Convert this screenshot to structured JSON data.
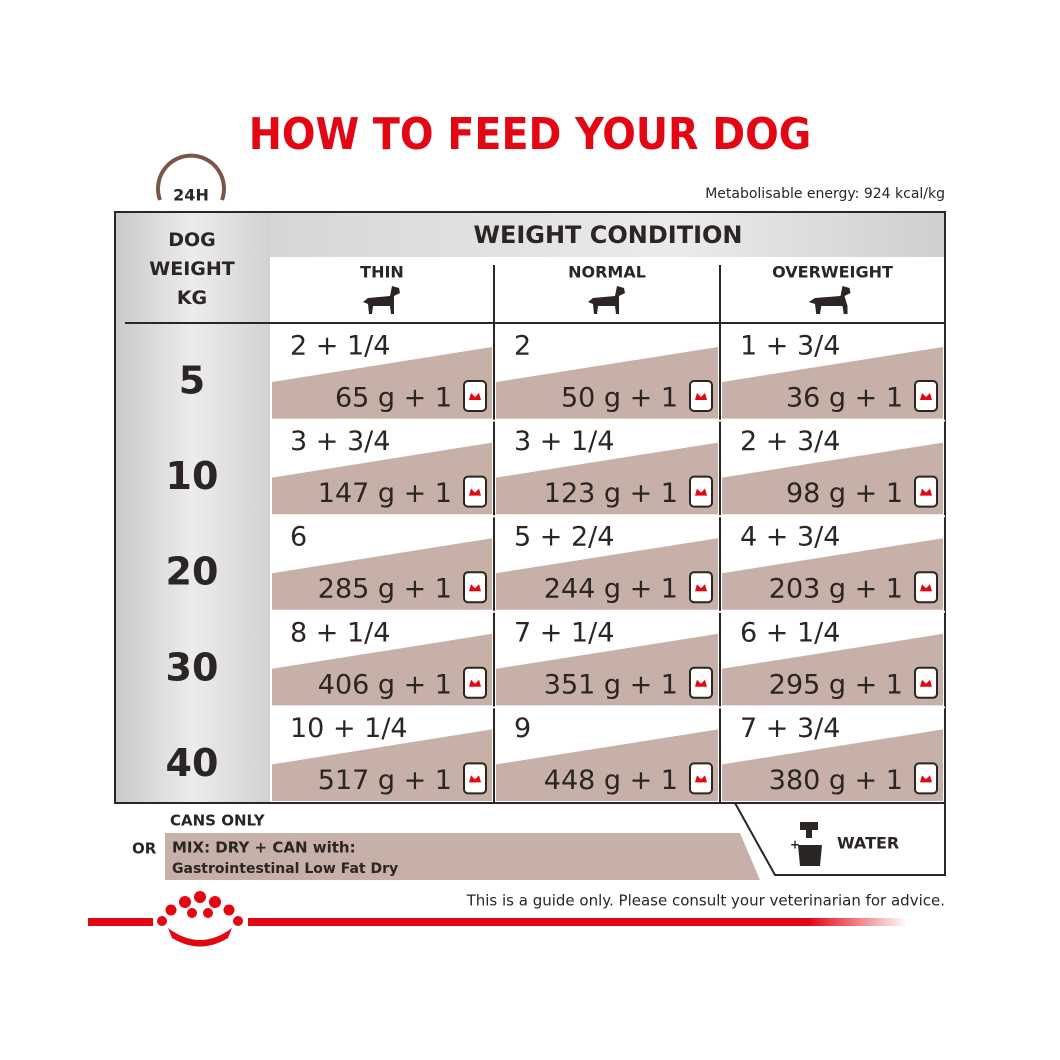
{
  "title": "HOW TO FEED YOUR DOG",
  "clock_label": "24H",
  "energy": "Metabolisable energy: 924 kcal/kg",
  "table": {
    "row_header": "DOG WEIGHT KG",
    "group_header": "WEIGHT CONDITION",
    "columns": [
      "THIN",
      "NORMAL",
      "OVERWEIGHT"
    ],
    "rows": [
      {
        "weight": "5",
        "cells": [
          {
            "cans": "2 + 1/4",
            "mix": "65 g + 1"
          },
          {
            "cans": "2",
            "mix": "50 g + 1"
          },
          {
            "cans": "1 + 3/4",
            "mix": "36 g + 1"
          }
        ]
      },
      {
        "weight": "10",
        "cells": [
          {
            "cans": "3 + 3/4",
            "mix": "147 g + 1"
          },
          {
            "cans": "3 + 1/4",
            "mix": "123 g + 1"
          },
          {
            "cans": "2 + 3/4",
            "mix": "98 g + 1"
          }
        ]
      },
      {
        "weight": "20",
        "cells": [
          {
            "cans": "6",
            "mix": "285 g + 1"
          },
          {
            "cans": "5 + 2/4",
            "mix": "244 g + 1"
          },
          {
            "cans": "4 + 3/4",
            "mix": "203 g + 1"
          }
        ]
      },
      {
        "weight": "30",
        "cells": [
          {
            "cans": "8 + 1/4",
            "mix": "406 g + 1"
          },
          {
            "cans": "7 + 1/4",
            "mix": "351 g + 1"
          },
          {
            "cans": "6 + 1/4",
            "mix": "295 g + 1"
          }
        ]
      },
      {
        "weight": "40",
        "cells": [
          {
            "cans": "10 + 1/4",
            "mix": "517 g + 1"
          },
          {
            "cans": "9",
            "mix": "448 g + 1"
          },
          {
            "cans": "7 + 3/4",
            "mix": "380 g + 1"
          }
        ]
      }
    ]
  },
  "legend": {
    "cans_only": "CANS ONLY",
    "or": "OR",
    "mix": "MIX: DRY + CAN with:",
    "mix_product": "Gastrointestinal Low Fat Dry",
    "water": "WATER"
  },
  "footer": "This is a guide only. Please consult your veterinarian for advice."
}
